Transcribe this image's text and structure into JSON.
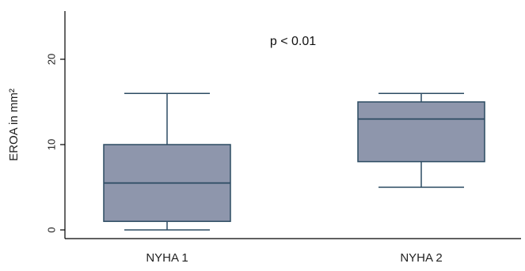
{
  "chart_data": {
    "type": "box",
    "ylabel": "EROA in mm²",
    "ylim": [
      -1,
      25
    ],
    "yticks": [
      0,
      10,
      20
    ],
    "annotation": "p < 0.01",
    "categories": [
      "NYHA 1",
      "NYHA 2"
    ],
    "boxes": [
      {
        "category": "NYHA 1",
        "min": 0,
        "q1": 1,
        "median": 5.5,
        "q3": 10,
        "max": 16
      },
      {
        "category": "NYHA 2",
        "min": 5,
        "q1": 8,
        "median": 13,
        "q3": 15,
        "max": 16
      }
    ],
    "colors": {
      "box_fill": "#8e96ac",
      "box_stroke": "#2c4b62",
      "axis": "#000000"
    }
  }
}
